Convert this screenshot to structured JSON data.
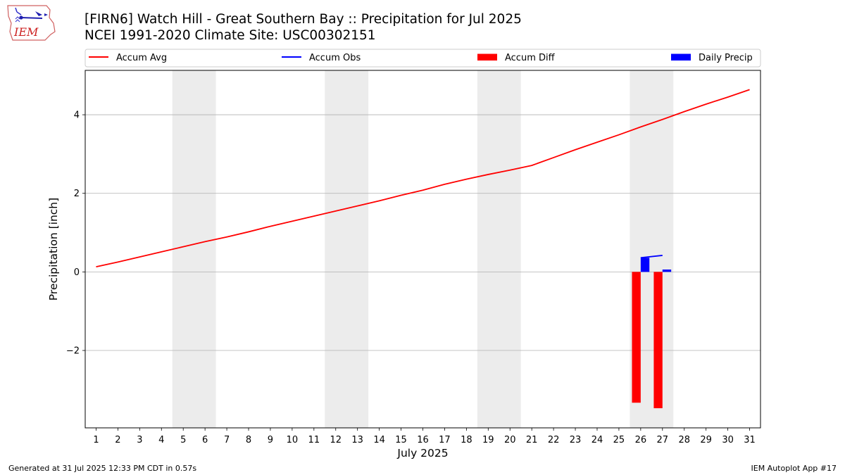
{
  "header": {
    "title_line1": "[FIRN6] Watch Hill - Great Southern Bay :: Precipitation for Jul 2025",
    "title_line2": "NCEI 1991-2020 Climate Site: USC00302151",
    "logo_text": "IEM"
  },
  "footer": {
    "left": "Generated at 31 Jul 2025 12:33 PM CDT in 0.57s",
    "right": "IEM Autoplot App #17"
  },
  "colors": {
    "accum_avg": "#ff0000",
    "accum_obs": "#0000ff",
    "accum_diff": "#ff0000",
    "daily_precip": "#0000ff",
    "weekend_shade": "#ececec",
    "grid": "#b0b0b0"
  },
  "chart_data": {
    "type": "line",
    "xlabel": "July 2025",
    "ylabel": "Precipitation [inch]",
    "xlim": [
      0.5,
      31.5
    ],
    "ylim": [
      -3.97,
      5.13
    ],
    "x_ticks": [
      1,
      2,
      3,
      4,
      5,
      6,
      7,
      8,
      9,
      10,
      11,
      12,
      13,
      14,
      15,
      16,
      17,
      18,
      19,
      20,
      21,
      22,
      23,
      24,
      25,
      26,
      27,
      28,
      29,
      30,
      31
    ],
    "y_ticks": [
      -2,
      0,
      2,
      4
    ],
    "y_tick_labels": [
      "−2",
      "0",
      "2",
      "4"
    ],
    "grid": "horizontal",
    "legend_position": "top",
    "legend": [
      "Accum Avg",
      "Accum Obs",
      "Accum Diff",
      "Daily Precip"
    ],
    "weekend_spans": [
      [
        4.5,
        6.5
      ],
      [
        11.5,
        13.5
      ],
      [
        18.5,
        20.5
      ],
      [
        25.5,
        27.5
      ]
    ],
    "series": [
      {
        "name": "Accum Avg",
        "type": "line",
        "x": [
          1,
          2,
          3,
          4,
          5,
          6,
          7,
          8,
          9,
          10,
          11,
          12,
          13,
          14,
          15,
          16,
          17,
          18,
          19,
          20,
          21,
          22,
          23,
          24,
          25,
          26,
          27,
          28,
          29,
          30,
          31
        ],
        "values": [
          0.13,
          0.25,
          0.38,
          0.51,
          0.64,
          0.77,
          0.89,
          1.02,
          1.16,
          1.29,
          1.42,
          1.55,
          1.68,
          1.81,
          1.95,
          2.08,
          2.23,
          2.36,
          2.48,
          2.59,
          2.71,
          2.91,
          3.11,
          3.3,
          3.49,
          3.69,
          3.88,
          4.08,
          4.27,
          4.45,
          4.64
        ]
      },
      {
        "name": "Accum Obs",
        "type": "line",
        "x": [
          26,
          27
        ],
        "values": [
          0.36,
          0.42
        ]
      },
      {
        "name": "Accum Diff",
        "type": "bar",
        "x": [
          26,
          27
        ],
        "values": [
          -3.33,
          -3.47
        ]
      },
      {
        "name": "Daily Precip",
        "type": "bar",
        "x": [
          26,
          27
        ],
        "values": [
          0.36,
          0.06
        ]
      }
    ]
  }
}
